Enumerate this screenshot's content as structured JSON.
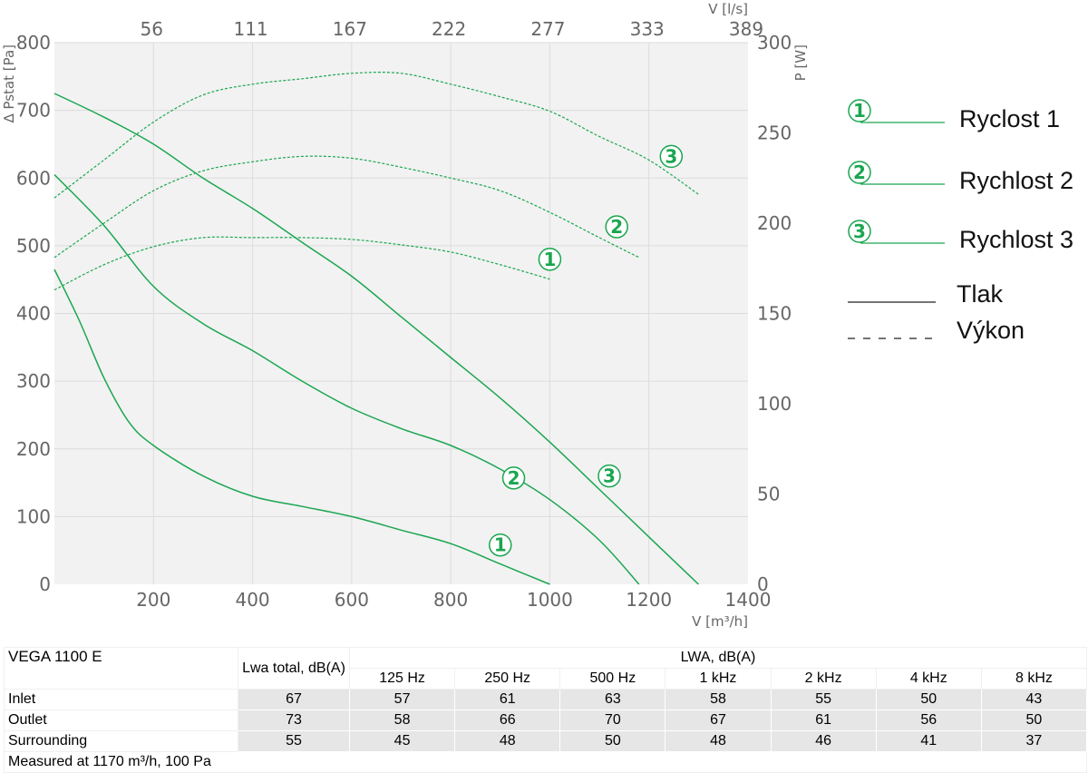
{
  "chart_data": {
    "type": "line",
    "xlabel": "V [m³/h]",
    "x2label": "V [l/s]",
    "ylabel": "∆ Pstat [Pa]",
    "y2label": "P [W]",
    "xlim": [
      0,
      1400
    ],
    "ylim": [
      0,
      800
    ],
    "y2lim": [
      0,
      300
    ],
    "x_ticks": [
      200,
      400,
      600,
      800,
      1000,
      1200,
      1400
    ],
    "y_ticks": [
      0,
      100,
      200,
      300,
      400,
      500,
      600,
      700,
      800
    ],
    "y2_ticks": [
      0,
      50,
      100,
      150,
      200,
      250,
      300
    ],
    "x2_ticks": [
      "56",
      "111",
      "167",
      "222",
      "277",
      "333",
      "389"
    ],
    "grid": true,
    "legend_position": "right",
    "pressure_series": [
      {
        "label": "1",
        "x": [
          0,
          50,
          100,
          150,
          200,
          300,
          400,
          500,
          600,
          700,
          800,
          900,
          1000
        ],
        "y": [
          465,
          390,
          305,
          240,
          205,
          160,
          130,
          115,
          100,
          80,
          60,
          30,
          0
        ]
      },
      {
        "label": "2",
        "x": [
          0,
          100,
          200,
          300,
          400,
          500,
          600,
          700,
          800,
          900,
          1000,
          1100,
          1180
        ],
        "y": [
          605,
          530,
          440,
          385,
          345,
          300,
          260,
          230,
          205,
          170,
          125,
          65,
          0
        ]
      },
      {
        "label": "3",
        "x": [
          0,
          100,
          200,
          300,
          400,
          500,
          600,
          700,
          800,
          900,
          1000,
          1100,
          1200,
          1300
        ],
        "y": [
          725,
          690,
          650,
          600,
          555,
          505,
          455,
          395,
          335,
          275,
          210,
          140,
          70,
          0
        ]
      }
    ],
    "power_series": [
      {
        "label": "1",
        "x": [
          0,
          100,
          200,
          300,
          400,
          500,
          600,
          700,
          800,
          900,
          1000
        ],
        "y": [
          163,
          177,
          187,
          192,
          192,
          192,
          191,
          188,
          184,
          177,
          169
        ]
      },
      {
        "label": "2",
        "x": [
          0,
          100,
          200,
          300,
          400,
          500,
          600,
          700,
          800,
          900,
          1000,
          1100,
          1180
        ],
        "y": [
          181,
          200,
          218,
          229,
          234,
          237,
          236,
          231,
          225,
          218,
          206,
          192,
          181
        ]
      },
      {
        "label": "3",
        "x": [
          0,
          100,
          200,
          300,
          400,
          500,
          600,
          700,
          800,
          900,
          1000,
          1100,
          1200,
          1300
        ],
        "y": [
          214,
          235,
          256,
          271,
          277,
          280,
          283,
          283,
          277,
          270,
          262,
          248,
          235,
          216
        ]
      }
    ],
    "legend": [
      {
        "badge": "1",
        "text": "Ryclost 1"
      },
      {
        "badge": "2",
        "text": "Rychlost 2"
      },
      {
        "badge": "3",
        "text": "Rychlost 3"
      },
      {
        "text": "Tlak",
        "style": "solid"
      },
      {
        "text": "Výkon",
        "style": "dashed"
      }
    ],
    "colors": {
      "curve": "#1aa650",
      "grid": "#dcdcdc",
      "plot_bg": "#f2f2f2",
      "legend_line": "#222222"
    }
  },
  "noise_table": {
    "model": "VEGA 1100 E",
    "total_header": "Lwa total, dB(A)",
    "band_header": "LWA, dB(A)",
    "bands": [
      "125 Hz",
      "250 Hz",
      "500 Hz",
      "1 kHz",
      "2 kHz",
      "4 kHz",
      "8 kHz"
    ],
    "rows": [
      {
        "name": "Inlet",
        "values": [
          "67",
          "57",
          "61",
          "63",
          "58",
          "55",
          "50",
          "43"
        ]
      },
      {
        "name": "Outlet",
        "values": [
          "73",
          "58",
          "66",
          "70",
          "67",
          "61",
          "56",
          "50"
        ]
      },
      {
        "name": "Surrounding",
        "values": [
          "55",
          "45",
          "48",
          "50",
          "48",
          "46",
          "41",
          "37"
        ]
      }
    ],
    "note": "Measured at 1170 m³/h, 100 Pa"
  }
}
